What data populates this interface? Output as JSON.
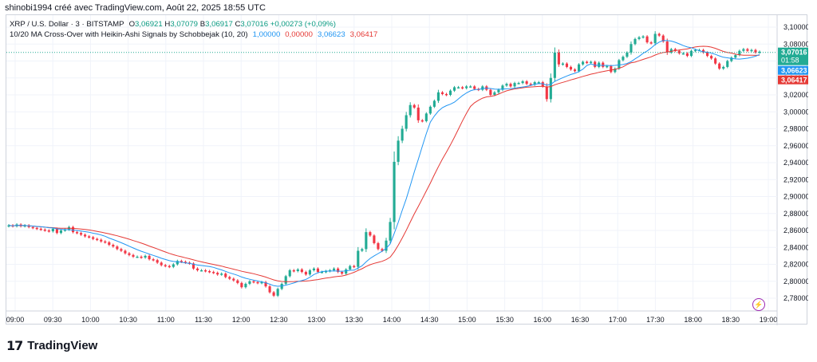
{
  "credit": "shinobi1994 créé avec TradingView.com, Août 22, 2025 18:55 UTC",
  "legend": {
    "symbol": "XRP / U.S. Dollar · 3 · BITSTAMP",
    "ohlc": {
      "o_label": "O",
      "o": "3,06921",
      "h_label": "H",
      "h": "3,07079",
      "b_label": "B",
      "b": "3,06917",
      "c_label": "C",
      "c": "3,07016",
      "change": "+0,00273 (+0,09%)"
    },
    "indicator_name": "10/20 MA Cross-Over with Heikin-Ashi Signals by Schobbejak (10, 20)",
    "indicator_values": [
      "1,00000",
      "0,00000",
      "3,06623",
      "3,06417"
    ]
  },
  "brand": "TradingView",
  "colors": {
    "up": "#22ab94",
    "down": "#f23645",
    "ma_fast": "#2196f3",
    "ma_slow": "#e53935",
    "grid": "#f0f3fa",
    "price_line": "#22ab94"
  },
  "chart_data": {
    "type": "candlestick",
    "x_ticks": [
      "09:00",
      "09:30",
      "10:00",
      "10:30",
      "11:00",
      "11:30",
      "12:00",
      "12:30",
      "13:00",
      "13:30",
      "14:00",
      "14:30",
      "15:00",
      "15:30",
      "16:00",
      "16:30",
      "17:00",
      "17:30",
      "18:00",
      "18:30",
      "19:00"
    ],
    "y_ticks": [
      "3,10000",
      "3,08000",
      "3,06000",
      "3,04000",
      "3,02000",
      "3,00000",
      "2,98000",
      "2,96000",
      "2,94000",
      "2,92000",
      "2,90000",
      "2,88000",
      "2,86000",
      "2,84000",
      "2,82000",
      "2,80000",
      "2,78000"
    ],
    "ylim": [
      2.77,
      3.11
    ],
    "price_labels": [
      {
        "value": 3.07016,
        "text": "3,07016",
        "sub": "01:58",
        "color": "#22ab94"
      },
      {
        "value": 3.06623,
        "text": "3,06623",
        "sub": "",
        "color": "#2196f3"
      },
      {
        "value": 3.06417,
        "text": "3,06417",
        "sub": "",
        "color": "#e53935"
      }
    ],
    "series": [
      {
        "name": "price",
        "close": [
          2.866,
          2.865,
          2.867,
          2.865,
          2.866,
          2.864,
          2.863,
          2.862,
          2.861,
          2.86,
          2.859,
          2.862,
          2.857,
          2.86,
          2.861,
          2.864,
          2.858,
          2.857,
          2.855,
          2.853,
          2.852,
          2.85,
          2.849,
          2.847,
          2.846,
          2.843,
          2.841,
          2.838,
          2.836,
          2.833,
          2.831,
          2.829,
          2.829,
          2.828,
          2.83,
          2.826,
          2.825,
          2.822,
          2.819,
          2.818,
          2.817,
          2.82,
          2.824,
          2.823,
          2.822,
          2.821,
          2.815,
          2.813,
          2.813,
          2.812,
          2.811,
          2.81,
          2.808,
          2.809,
          2.805,
          2.803,
          2.801,
          2.798,
          2.793,
          2.797,
          2.8,
          2.799,
          2.798,
          2.799,
          2.794,
          2.787,
          2.783,
          2.791,
          2.797,
          2.806,
          2.813,
          2.812,
          2.814,
          2.811,
          2.808,
          2.813,
          2.815,
          2.811,
          2.811,
          2.812,
          2.813,
          2.815,
          2.811,
          2.809,
          2.814,
          2.818,
          2.817,
          2.836,
          2.838,
          2.858,
          2.854,
          2.845,
          2.838,
          2.836,
          2.848,
          2.87,
          2.941,
          2.966,
          2.98,
          2.996,
          3.008,
          3.005,
          2.99,
          2.989,
          2.998,
          3.006,
          3.013,
          3.023,
          3.021,
          3.02,
          3.025,
          3.029,
          3.029,
          3.028,
          3.03,
          3.03,
          3.027,
          3.026,
          3.03,
          3.026,
          3.02,
          3.023,
          3.026,
          3.031,
          3.033,
          3.03,
          3.034,
          3.034,
          3.036,
          3.033,
          3.032,
          3.035,
          3.035,
          3.03,
          3.015,
          3.04,
          3.07,
          3.056,
          3.057,
          3.053,
          3.05,
          3.048,
          3.056,
          3.059,
          3.058,
          3.059,
          3.053,
          3.058,
          3.053,
          3.054,
          3.047,
          3.051,
          3.061,
          3.065,
          3.07,
          3.08,
          3.086,
          3.088,
          3.089,
          3.082,
          3.081,
          3.092,
          3.09,
          3.083,
          3.07,
          3.074,
          3.072,
          3.069,
          3.069,
          3.066,
          3.072,
          3.073,
          3.073,
          3.07,
          3.066,
          3.063,
          3.057,
          3.051,
          3.053,
          3.06,
          3.064,
          3.067,
          3.072,
          3.074,
          3.072,
          3.073,
          3.07,
          3.071
        ]
      },
      {
        "name": "MA 10",
        "values": []
      },
      {
        "name": "MA 20",
        "values": []
      }
    ]
  }
}
